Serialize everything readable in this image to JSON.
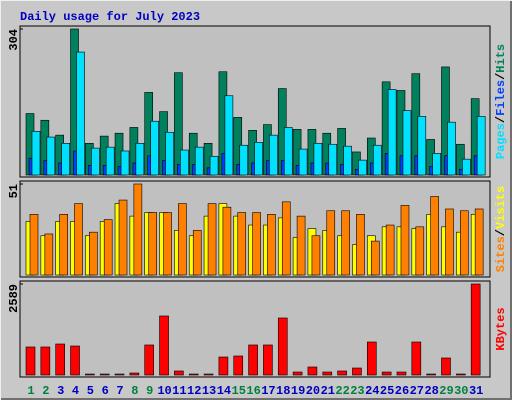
{
  "legend_separator": "/",
  "chart_data": [
    {
      "type": "bar",
      "title": "Daily usage for July 2023",
      "ylim": [
        0,
        304
      ],
      "yticks": [
        304
      ],
      "series": [
        {
          "name": "Hits",
          "color": "#00805c",
          "values": [
            128,
            114,
            83,
            304,
            66,
            81,
            87,
            99,
            172,
            132,
            213,
            87,
            66,
            215,
            120,
            93,
            105,
            180,
            95,
            95,
            87,
            97,
            48,
            77,
            194,
            176,
            211,
            74,
            225,
            64,
            159
          ]
        },
        {
          "name": "Files",
          "color": "#0040ff",
          "values": [
            35,
            30,
            25,
            50,
            20,
            20,
            18,
            25,
            40,
            30,
            22,
            22,
            15,
            45,
            22,
            25,
            30,
            30,
            20,
            25,
            25,
            22,
            12,
            25,
            45,
            40,
            40,
            18,
            40,
            12,
            40
          ]
        },
        {
          "name": "Pages",
          "color": "#00e0ff",
          "values": [
            91,
            79,
            66,
            256,
            56,
            58,
            50,
            66,
            112,
            89,
            52,
            58,
            39,
            165,
            62,
            68,
            83,
            99,
            54,
            66,
            64,
            60,
            31,
            62,
            178,
            134,
            122,
            45,
            110,
            33,
            122
          ]
        }
      ]
    },
    {
      "type": "bar",
      "ylim": [
        0,
        51
      ],
      "yticks": [
        51
      ],
      "series": [
        {
          "name": "Visits",
          "color": "#ffff00",
          "values": [
            30,
            22,
            30,
            30,
            22,
            30,
            40,
            33,
            35,
            35,
            25,
            22,
            33,
            40,
            33,
            28,
            28,
            32,
            21,
            26,
            25,
            22,
            17,
            22,
            27,
            27,
            26,
            34,
            27,
            24,
            34
          ]
        },
        {
          "name": "Sites",
          "color": "#ff8000",
          "values": [
            34,
            23,
            34,
            40,
            24,
            31,
            42,
            51,
            35,
            35,
            40,
            25,
            40,
            38,
            35,
            35,
            34,
            41,
            33,
            22,
            36,
            36,
            34,
            19,
            28,
            39,
            27,
            44,
            37,
            36,
            37
          ]
        }
      ]
    },
    {
      "type": "bar",
      "ylim": [
        0,
        2589
      ],
      "yticks": [
        2589
      ],
      "categories": [
        "1",
        "2",
        "3",
        "4",
        "5",
        "6",
        "7",
        "8",
        "9",
        "10",
        "11",
        "12",
        "13",
        "14",
        "15",
        "16",
        "17",
        "18",
        "19",
        "20",
        "21",
        "22",
        "23",
        "24",
        "25",
        "26",
        "27",
        "28",
        "29",
        "30",
        "31"
      ],
      "category_colors": [
        "#008040",
        "#008040",
        "#0000c0",
        "#0000c0",
        "#0000c0",
        "#0000c0",
        "#0000c0",
        "#008040",
        "#008040",
        "#0000c0",
        "#0000c0",
        "#0000c0",
        "#0000c0",
        "#0000c0",
        "#008040",
        "#008040",
        "#0000c0",
        "#0000c0",
        "#0000c0",
        "#0000c0",
        "#0000c0",
        "#008040",
        "#008040",
        "#0000c0",
        "#0000c0",
        "#0000c0",
        "#0000c0",
        "#0000c0",
        "#008040",
        "#008040",
        "#0000c0"
      ],
      "series": [
        {
          "name": "KBytes",
          "color": "#ff0000",
          "values": [
            797,
            797,
            882,
            825,
            28,
            28,
            28,
            57,
            854,
            1679,
            114,
            28,
            28,
            512,
            541,
            854,
            854,
            1622,
            85,
            228,
            85,
            114,
            199,
            939,
            85,
            85,
            939,
            28,
            484,
            28,
            2589
          ]
        }
      ]
    }
  ]
}
